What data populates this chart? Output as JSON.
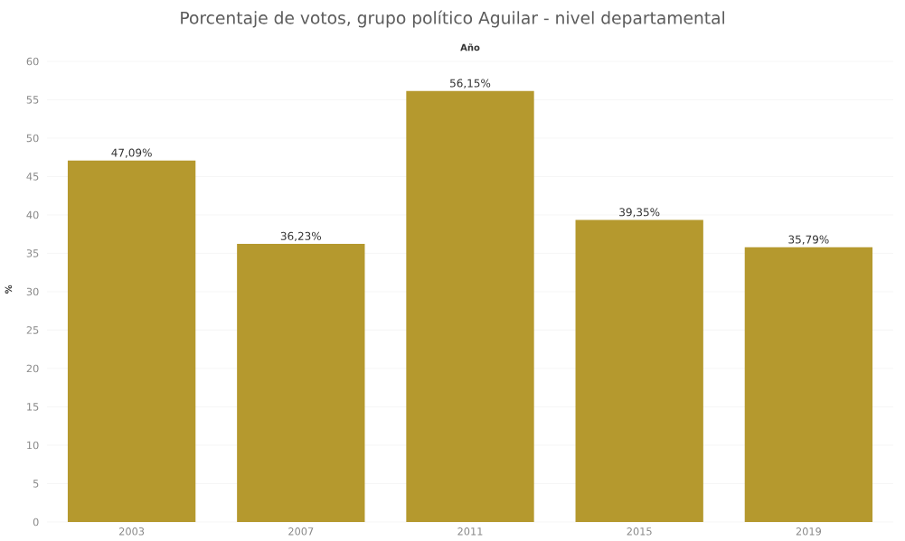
{
  "chart_data": {
    "type": "bar",
    "title": "Porcentaje de votos, grupo político Aguilar - nivel departamental",
    "xlabel": "Año",
    "ylabel": "%",
    "categories": [
      "2003",
      "2007",
      "2011",
      "2015",
      "2019"
    ],
    "values": [
      47.09,
      36.23,
      56.15,
      39.35,
      35.79
    ],
    "value_labels": [
      "47,09%",
      "36,23%",
      "56,15%",
      "39,35%",
      "35,79%"
    ],
    "color": "#b5992e",
    "ylim": [
      0,
      60
    ],
    "yticks": [
      0,
      5,
      10,
      15,
      20,
      25,
      30,
      35,
      40,
      45,
      50,
      55,
      60
    ],
    "grid": "y"
  }
}
